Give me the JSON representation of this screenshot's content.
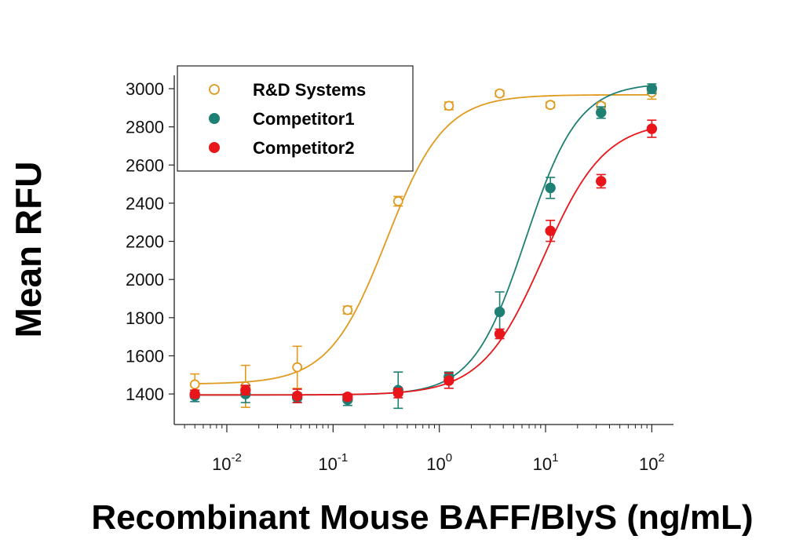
{
  "chart_data": {
    "type": "scatter",
    "xlabel": "Recombinant Mouse BAFF/BlyS (ng/mL)",
    "ylabel": "Mean RFU",
    "x_scale": "log",
    "xlim": [
      0.0032,
      160
    ],
    "ylim": [
      1240,
      3070
    ],
    "grid": false,
    "legend_position": "top-left",
    "y_ticks": [
      1400,
      1600,
      1800,
      2000,
      2200,
      2400,
      2600,
      2800,
      3000
    ],
    "y_tick_labels": [
      "1400",
      "1600",
      "1800",
      "2000",
      "2200",
      "2400",
      "2600",
      "2800",
      "3000"
    ],
    "x_ticks": [
      0.01,
      0.1,
      1,
      10,
      100
    ],
    "x_tick_labels": [
      {
        "base": "10",
        "exp": "-2"
      },
      {
        "base": "10",
        "exp": "-1"
      },
      {
        "base": "10",
        "exp": "0"
      },
      {
        "base": "10",
        "exp": "1"
      },
      {
        "base": "10",
        "exp": "2"
      }
    ],
    "x": [
      0.005,
      0.015,
      0.046,
      0.137,
      0.41,
      1.23,
      3.7,
      11.1,
      33.3,
      100
    ],
    "series": [
      {
        "name": "R&D Systems",
        "color": "#E09A1E",
        "marker": "open-circle",
        "values": [
          1450,
          1440,
          1540,
          1840,
          2410,
          2910,
          2975,
          2915,
          2910,
          2980
        ],
        "errors": [
          55,
          110,
          110,
          20,
          25,
          20,
          15,
          15,
          15,
          35
        ],
        "fit": {
          "bottom": 1452,
          "top": 2968,
          "ec50": 0.32,
          "hill": 1.6
        }
      },
      {
        "name": "Competitor1",
        "color": "#1E7F75",
        "marker": "filled-circle",
        "values": [
          1390,
          1400,
          1380,
          1370,
          1420,
          1490,
          1830,
          2480,
          2875,
          3000
        ],
        "errors": [
          30,
          45,
          25,
          30,
          95,
          25,
          105,
          55,
          30,
          25
        ],
        "fit": {
          "bottom": 1395,
          "top": 3030,
          "ec50": 6.5,
          "hill": 1.75
        }
      },
      {
        "name": "Competitor2",
        "color": "#E8161B",
        "marker": "filled-circle",
        "values": [
          1400,
          1420,
          1390,
          1385,
          1405,
          1470,
          1715,
          2255,
          2515,
          2790
        ],
        "errors": [
          20,
          25,
          35,
          15,
          25,
          40,
          25,
          55,
          35,
          45
        ],
        "fit": {
          "bottom": 1395,
          "top": 2830,
          "ec50": 9.5,
          "hill": 1.5
        }
      }
    ]
  }
}
